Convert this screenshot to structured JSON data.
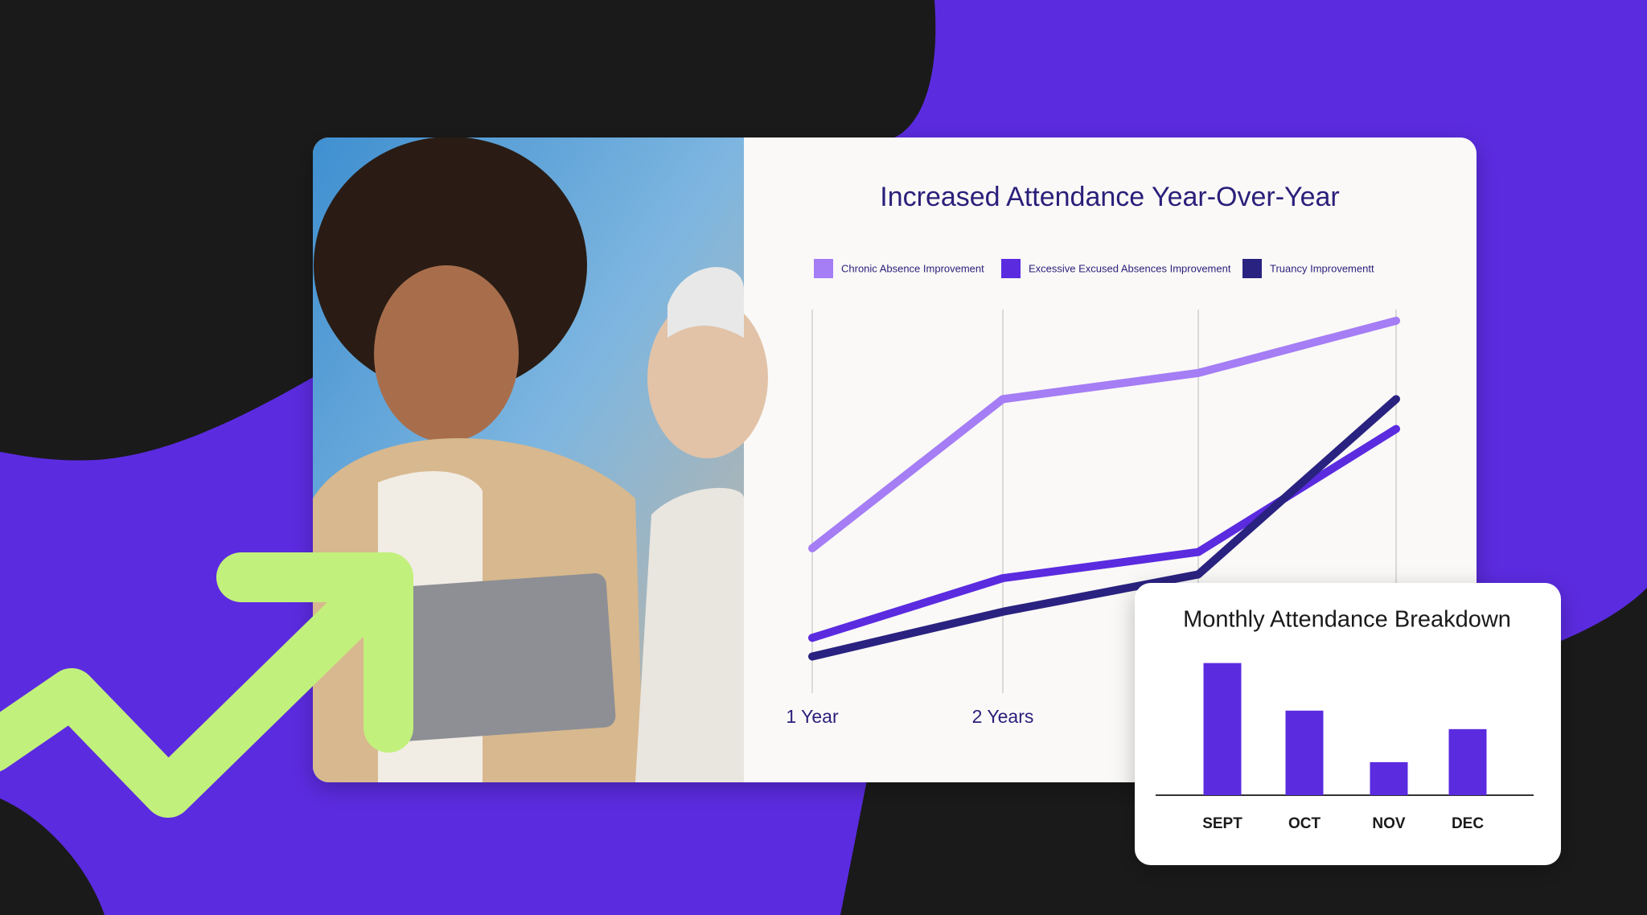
{
  "chart_data": [
    {
      "type": "line",
      "title": "Increased Attendance Year-Over-Year",
      "categories": [
        "1 Year",
        "2 Years",
        null,
        null
      ],
      "series": [
        {
          "name": "Chronic Absence Improvement",
          "color": "#a57df5",
          "values": [
            36,
            76,
            83,
            97
          ]
        },
        {
          "name": "Excessive Excused Absences Improvement",
          "color": "#5b2be0",
          "values": [
            12,
            28,
            35,
            68
          ]
        },
        {
          "name": "Truancy Improvementt",
          "color": "#2a2280",
          "values": [
            7,
            19,
            29,
            76
          ]
        }
      ],
      "ylim": [
        0,
        100
      ],
      "grid": true
    },
    {
      "type": "bar",
      "title": "Monthly Attendance Breakdown",
      "categories": [
        "SEPT",
        "OCT",
        "NOV",
        "DEC"
      ],
      "values": [
        100,
        64,
        25,
        50
      ],
      "color": "#5b2be0",
      "ylim": [
        0,
        115
      ]
    }
  ]
}
